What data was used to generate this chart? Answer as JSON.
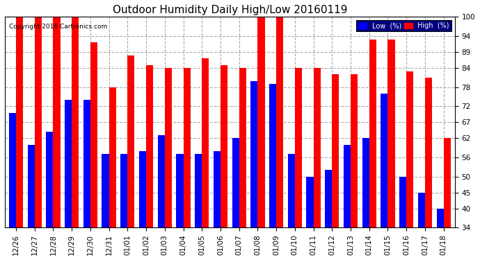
{
  "title": "Outdoor Humidity Daily High/Low 20160119",
  "copyright": "Copyright 2016 Cartronics.com",
  "legend_low": "Low  (%)",
  "legend_high": "High  (%)",
  "categories": [
    "12/26",
    "12/27",
    "12/28",
    "12/29",
    "12/30",
    "12/31",
    "01/01",
    "01/02",
    "01/03",
    "01/04",
    "01/05",
    "01/06",
    "01/07",
    "01/08",
    "01/09",
    "01/10",
    "01/11",
    "01/12",
    "01/13",
    "01/14",
    "01/15",
    "01/16",
    "01/17",
    "01/18"
  ],
  "high": [
    100,
    100,
    100,
    100,
    92,
    78,
    88,
    85,
    84,
    84,
    87,
    85,
    84,
    100,
    100,
    84,
    84,
    82,
    82,
    93,
    93,
    83,
    81,
    62
  ],
  "low": [
    70,
    60,
    64,
    74,
    74,
    57,
    57,
    58,
    63,
    57,
    57,
    58,
    62,
    80,
    79,
    57,
    50,
    52,
    60,
    62,
    76,
    50,
    45,
    40
  ],
  "ylim_min": 34,
  "ylim_max": 100,
  "yticks": [
    34,
    40,
    45,
    50,
    56,
    62,
    67,
    72,
    78,
    84,
    89,
    94,
    100
  ],
  "bar_color_high": "#ff0000",
  "bar_color_low": "#0000ff",
  "background_color": "#ffffff",
  "grid_color": "#aaaaaa",
  "title_fontsize": 11,
  "tick_fontsize": 7.5,
  "bar_width": 0.38
}
